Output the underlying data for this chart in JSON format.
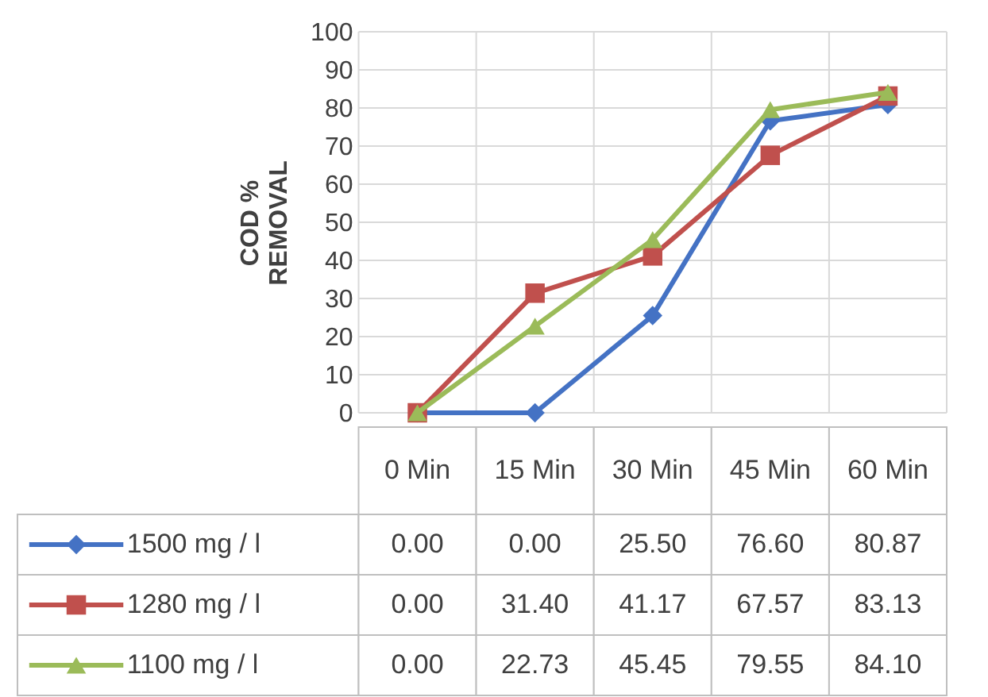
{
  "chart_data": {
    "type": "line",
    "ylabel": "COD %\nREMOVAL",
    "categories": [
      "0 Min",
      "15 Min",
      "30 Min",
      "45 Min",
      "60 Min"
    ],
    "series": [
      {
        "name": "1500 mg / l",
        "color": "#4472c4",
        "marker": "diamond",
        "values": [
          0.0,
          0.0,
          25.5,
          76.6,
          80.87
        ],
        "value_labels": [
          "0.00",
          "0.00",
          "25.50",
          "76.60",
          "80.87"
        ]
      },
      {
        "name": "1280 mg / l",
        "color": "#c0504d",
        "marker": "square",
        "values": [
          0.0,
          31.4,
          41.17,
          67.57,
          83.13
        ],
        "value_labels": [
          "0.00",
          "31.40",
          "41.17",
          "67.57",
          "83.13"
        ]
      },
      {
        "name": "1100 mg / l",
        "color": "#9bbb59",
        "marker": "triangle",
        "values": [
          0.0,
          22.73,
          45.45,
          79.55,
          84.1
        ],
        "value_labels": [
          "0.00",
          "22.73",
          "45.45",
          "79.55",
          "84.10"
        ]
      }
    ],
    "ylim": [
      0,
      100
    ],
    "yticks": [
      0,
      10,
      20,
      30,
      40,
      50,
      60,
      70,
      80,
      90,
      100
    ],
    "grid": true,
    "legend": "bottom",
    "line_style": "solid"
  }
}
